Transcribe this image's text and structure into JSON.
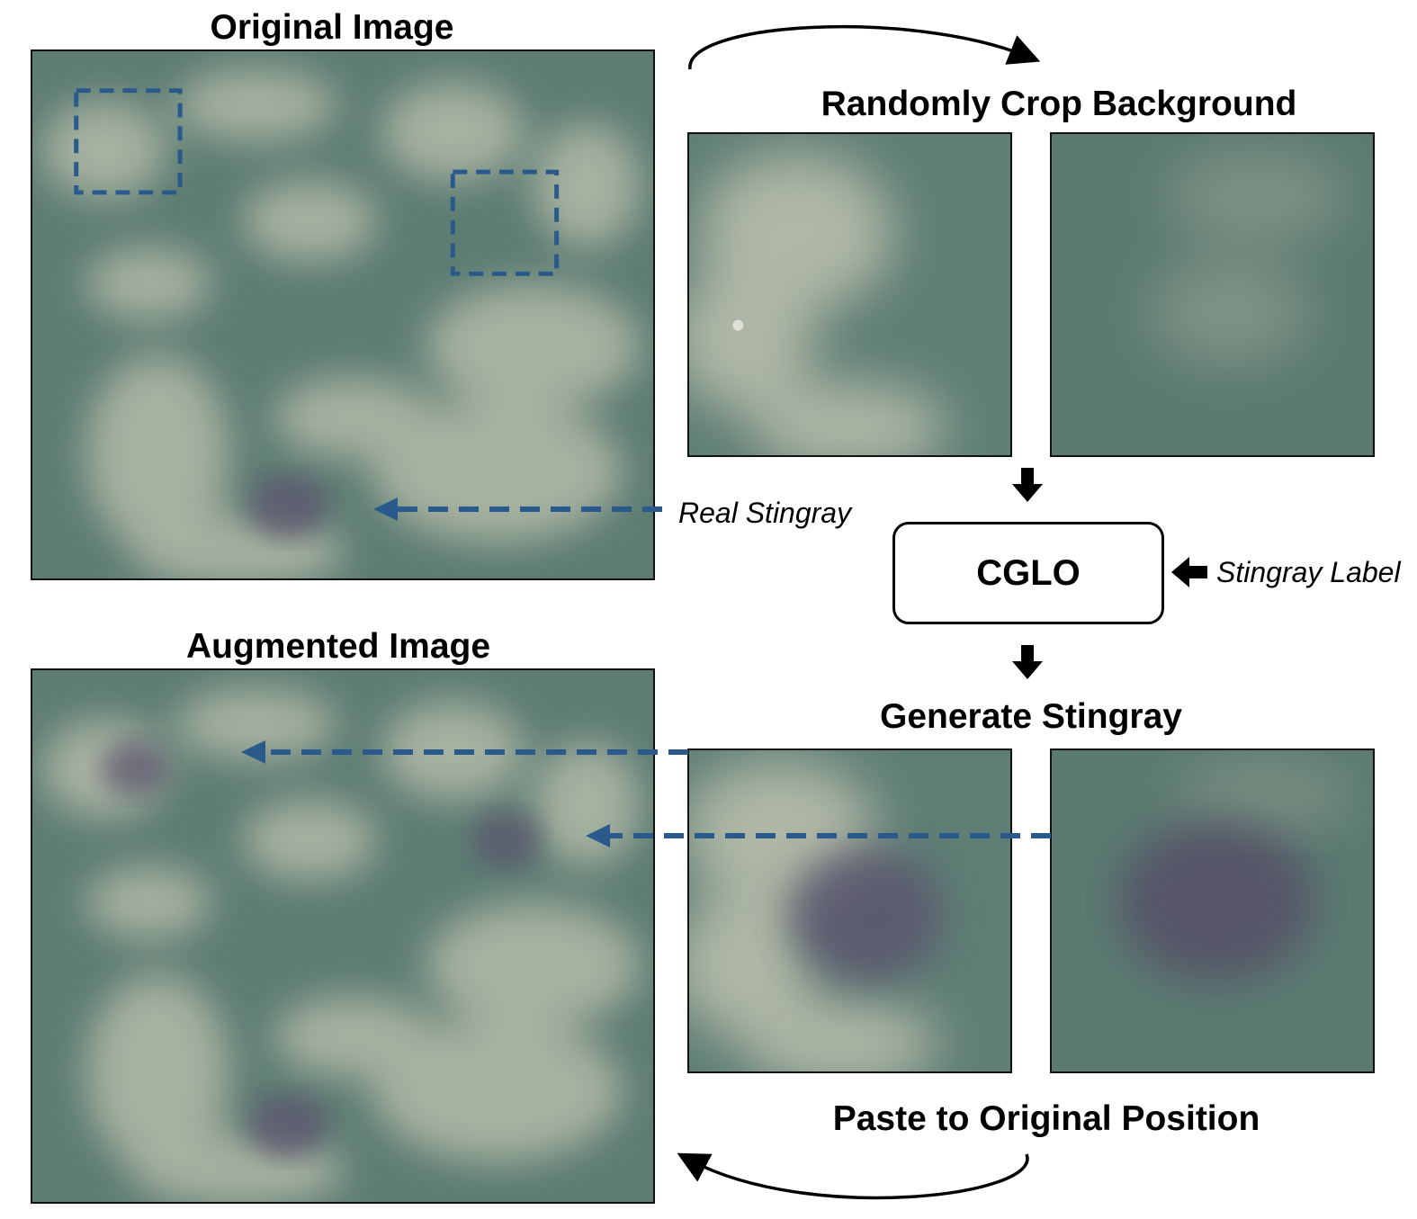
{
  "titles": {
    "original": "Original Image",
    "random_crop": "Randomly Crop Background",
    "augmented": "Augmented Image",
    "generate": "Generate Stingray",
    "paste": "Paste to Original Position"
  },
  "labels": {
    "real_stingray": "Real Stingray",
    "stingray_label": "Stingray Label"
  },
  "model": {
    "name": "CGLO"
  },
  "colors": {
    "dashed_arrow": "#2a5a8c",
    "water": "#5d7c73",
    "sand": "#b4bba8",
    "stingray": "#5a536d"
  }
}
